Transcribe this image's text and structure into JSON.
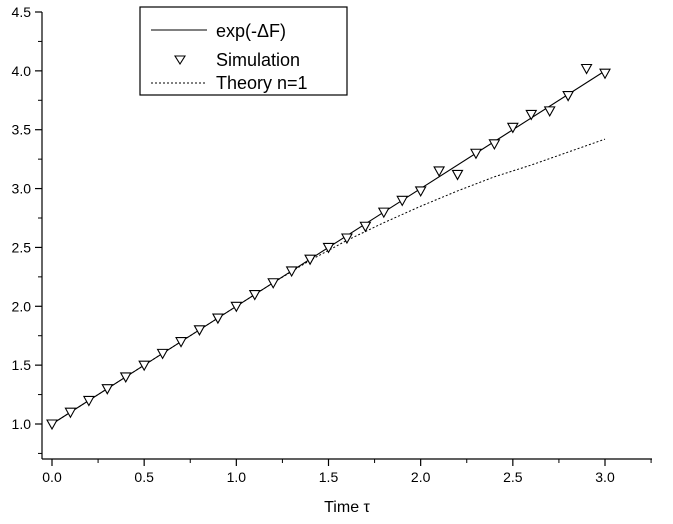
{
  "chart_data": {
    "type": "line",
    "title": "",
    "xlabel": "Time τ",
    "ylabel": "",
    "xlim": [
      0.0,
      3.0
    ],
    "ylim": [
      1.0,
      4.5
    ],
    "x_ticks": [
      "0.0",
      "0.5",
      "1.0",
      "1.5",
      "2.0",
      "2.5",
      "3.0"
    ],
    "y_ticks": [
      "1.0",
      "1.5",
      "2.0",
      "2.5",
      "3.0",
      "3.5",
      "4.0",
      "4.5"
    ],
    "grid": false,
    "legend_position": "top-left",
    "series": [
      {
        "name": "exp(-ΔF)",
        "style": "solid-line",
        "x": [
          0.0,
          3.0
        ],
        "y": [
          1.0,
          4.0
        ]
      },
      {
        "name": "Simulation",
        "style": "triangle-down-marker",
        "x": [
          0.0,
          0.1,
          0.2,
          0.3,
          0.4,
          0.5,
          0.6,
          0.7,
          0.8,
          0.9,
          1.0,
          1.1,
          1.2,
          1.3,
          1.4,
          1.5,
          1.6,
          1.7,
          1.8,
          1.9,
          2.0,
          2.1,
          2.2,
          2.3,
          2.4,
          2.5,
          2.6,
          2.7,
          2.8,
          2.9,
          3.0
        ],
        "y": [
          1.0,
          1.1,
          1.2,
          1.3,
          1.4,
          1.5,
          1.6,
          1.7,
          1.8,
          1.9,
          2.0,
          2.1,
          2.2,
          2.3,
          2.4,
          2.5,
          2.58,
          2.68,
          2.8,
          2.9,
          2.98,
          3.15,
          3.12,
          3.3,
          3.38,
          3.52,
          3.63,
          3.66,
          3.79,
          4.02,
          3.98
        ]
      },
      {
        "name": "Theory n=1",
        "style": "dashed-line",
        "x": [
          0.0,
          0.2,
          0.4,
          0.6,
          0.8,
          1.0,
          1.2,
          1.4,
          1.6,
          1.8,
          2.0,
          2.2,
          2.4,
          2.6,
          2.8,
          3.0
        ],
        "y": [
          1.0,
          1.2,
          1.4,
          1.6,
          1.8,
          2.0,
          2.2,
          2.39,
          2.56,
          2.71,
          2.85,
          2.98,
          3.1,
          3.2,
          3.31,
          3.42
        ]
      }
    ]
  }
}
